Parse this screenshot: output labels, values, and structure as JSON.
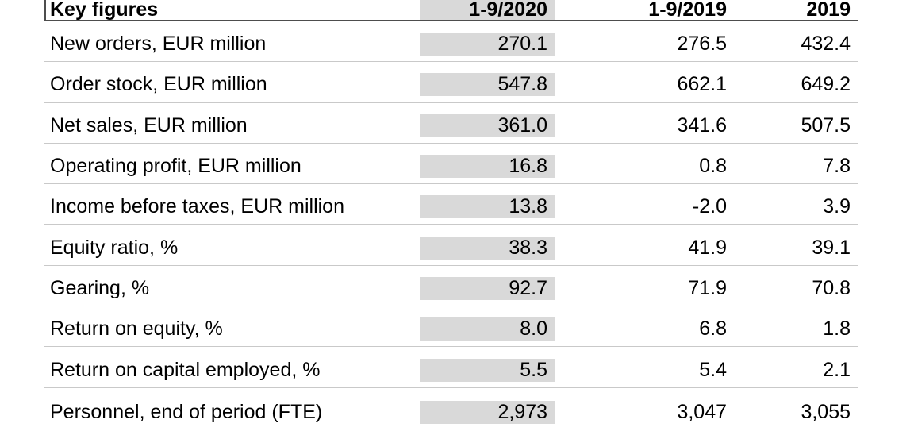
{
  "table": {
    "title_column": "Key figures",
    "columns": [
      "1-9/2020",
      "1-9/2019",
      "2019"
    ],
    "highlight_column": "1-9/2020",
    "rows": [
      {
        "label": "New orders, EUR million",
        "values": [
          "270.1",
          "276.5",
          "432.4"
        ]
      },
      {
        "label": "Order stock, EUR million",
        "values": [
          "547.8",
          "662.1",
          "649.2"
        ]
      },
      {
        "label": "Net sales, EUR million",
        "values": [
          "361.0",
          "341.6",
          "507.5"
        ]
      },
      {
        "label": "Operating profit, EUR million",
        "values": [
          "16.8",
          "0.8",
          "7.8"
        ]
      },
      {
        "label": "Income before taxes, EUR million",
        "values": [
          "13.8",
          "-2.0",
          "3.9"
        ]
      },
      {
        "label": "Equity ratio, %",
        "values": [
          "38.3",
          "41.9",
          "39.1"
        ]
      },
      {
        "label": "Gearing, %",
        "values": [
          "92.7",
          "71.9",
          "70.8"
        ]
      },
      {
        "label": "Return on equity, %",
        "values": [
          "8.0",
          "6.8",
          "1.8"
        ]
      },
      {
        "label": "Return on capital employed, %",
        "values": [
          "5.5",
          "5.4",
          "2.1"
        ]
      },
      {
        "label": "Personnel, end of period (FTE)",
        "values": [
          "2,973",
          "3,047",
          "3,055"
        ]
      }
    ]
  },
  "colors": {
    "background": "#ffffff",
    "text": "#000000",
    "highlight_column_bg": "#d9d9d9",
    "header_rule": "#4d4d4d",
    "row_rule": "#c9c9c9"
  },
  "chart_data": {
    "type": "table",
    "title": "Key figures",
    "columns": [
      "Key figures",
      "1-9/2020",
      "1-9/2019",
      "2019"
    ],
    "rows": [
      [
        "New orders, EUR million",
        270.1,
        276.5,
        432.4
      ],
      [
        "Order stock, EUR million",
        547.8,
        662.1,
        649.2
      ],
      [
        "Net sales, EUR million",
        361.0,
        341.6,
        507.5
      ],
      [
        "Operating profit, EUR million",
        16.8,
        0.8,
        7.8
      ],
      [
        "Income before taxes, EUR million",
        13.8,
        -2.0,
        3.9
      ],
      [
        "Equity ratio, %",
        38.3,
        41.9,
        39.1
      ],
      [
        "Gearing, %",
        92.7,
        71.9,
        70.8
      ],
      [
        "Return on equity, %",
        8.0,
        6.8,
        1.8
      ],
      [
        "Return on capital employed, %",
        5.5,
        5.4,
        2.1
      ],
      [
        "Personnel, end of period (FTE)",
        2973,
        3047,
        3055
      ]
    ],
    "layout_hints": {
      "highlighted_column": "1-9/2020",
      "numeric_alignment": "right"
    }
  }
}
